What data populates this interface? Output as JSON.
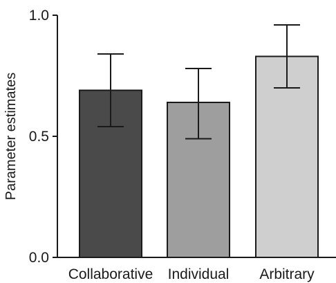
{
  "chart_data": {
    "type": "bar",
    "title": "",
    "xlabel": "",
    "ylabel": "Parameter estimates",
    "ylim": [
      0,
      1.0
    ],
    "yticks": [
      "0.0",
      "0.5",
      "1.0"
    ],
    "grid": false,
    "categories": [
      "Collaborative",
      "Individual",
      "Arbitrary"
    ],
    "values": [
      0.69,
      0.64,
      0.83
    ],
    "error_upper": [
      0.84,
      0.78,
      0.96
    ],
    "error_lower": [
      0.54,
      0.49,
      0.7
    ],
    "bar_colors": [
      "#4a4a4a",
      "#9e9e9e",
      "#cfcfcf"
    ]
  }
}
